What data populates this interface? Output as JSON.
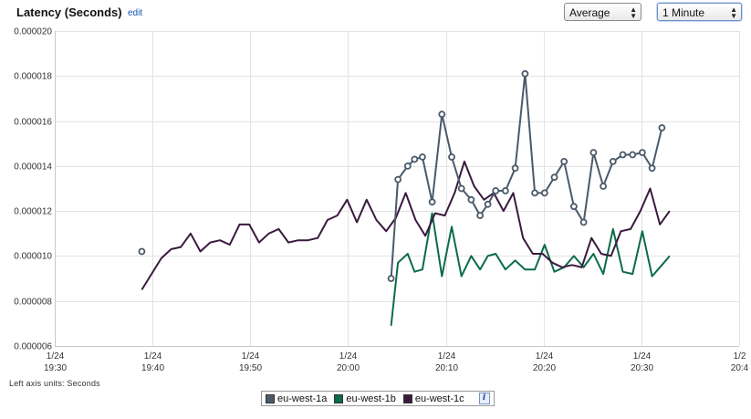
{
  "header": {
    "title": "Latency (Seconds)",
    "edit_label": "edit",
    "statistic": "Average",
    "period": "1 Minute"
  },
  "footnote": "Left axis units: Seconds",
  "legend": {
    "items": [
      {
        "label": "eu-west-1a",
        "color": "#4a5a6a"
      },
      {
        "label": "eu-west-1b",
        "color": "#0b6b4a"
      },
      {
        "label": "eu-west-1c",
        "color": "#3a1a3e"
      }
    ],
    "info_icon": "info-icon",
    "info_label": "i"
  },
  "chart_data": {
    "type": "line",
    "title": "Latency (Seconds)",
    "ylabel": "Seconds",
    "ylim": [
      6e-06,
      2e-05
    ],
    "xlim_minutes": [
      0,
      70
    ],
    "y_ticks": [
      "0.000006",
      "0.000008",
      "0.000010",
      "0.000012",
      "0.000014",
      "0.000016",
      "0.000018",
      "0.000020"
    ],
    "y_tick_values": [
      6e-06,
      8e-06,
      1e-05,
      1.2e-05,
      1.4e-05,
      1.6e-05,
      1.8e-05,
      2e-05
    ],
    "x_ticks": [
      {
        "minute": 0,
        "date": "1/24",
        "time": "19:30"
      },
      {
        "minute": 10,
        "date": "1/24",
        "time": "19:40"
      },
      {
        "minute": 20,
        "date": "1/24",
        "time": "19:50"
      },
      {
        "minute": 30,
        "date": "1/24",
        "time": "20:00"
      },
      {
        "minute": 40,
        "date": "1/24",
        "time": "20:10"
      },
      {
        "minute": 50,
        "date": "1/24",
        "time": "20:20"
      },
      {
        "minute": 60,
        "date": "1/24",
        "time": "20:30"
      },
      {
        "minute": 70,
        "date": "1/2",
        "time": "20:4"
      }
    ],
    "grid": true,
    "legend_position": "bottom",
    "series": [
      {
        "name": "eu-west-1a",
        "color": "#4a5a6a",
        "markers": true,
        "points": [
          [
            8.9,
            1.02e-05
          ],
          [
            34.4,
            9e-06
          ],
          [
            35.1,
            1.34e-05
          ],
          [
            36.1,
            1.4e-05
          ],
          [
            36.8,
            1.43e-05
          ],
          [
            37.6,
            1.44e-05
          ],
          [
            38.6,
            1.24e-05
          ],
          [
            39.6,
            1.63e-05
          ],
          [
            40.6,
            1.44e-05
          ],
          [
            41.6,
            1.3e-05
          ],
          [
            42.6,
            1.25e-05
          ],
          [
            43.5,
            1.18e-05
          ],
          [
            44.3,
            1.23e-05
          ],
          [
            45.1,
            1.29e-05
          ],
          [
            46.1,
            1.29e-05
          ],
          [
            47.1,
            1.39e-05
          ],
          [
            48.1,
            1.81e-05
          ],
          [
            49.1,
            1.28e-05
          ],
          [
            50.1,
            1.28e-05
          ],
          [
            51.1,
            1.35e-05
          ],
          [
            52.1,
            1.42e-05
          ],
          [
            53.1,
            1.22e-05
          ],
          [
            54.1,
            1.15e-05
          ],
          [
            55.1,
            1.46e-05
          ],
          [
            56.1,
            1.31e-05
          ],
          [
            57.1,
            1.42e-05
          ],
          [
            58.1,
            1.45e-05
          ],
          [
            59.1,
            1.45e-05
          ],
          [
            60.1,
            1.46e-05
          ],
          [
            61.1,
            1.39e-05
          ],
          [
            62.1,
            1.57e-05
          ]
        ]
      },
      {
        "name": "eu-west-1b",
        "color": "#0b6b4a",
        "markers": false,
        "points": [
          [
            34.4,
            6.9e-06
          ],
          [
            35.1,
            9.7e-06
          ],
          [
            36.1,
            1.01e-05
          ],
          [
            36.8,
            9.3e-06
          ],
          [
            37.6,
            9.4e-06
          ],
          [
            38.6,
            1.19e-05
          ],
          [
            39.6,
            9.1e-06
          ],
          [
            40.6,
            1.13e-05
          ],
          [
            41.6,
            9.1e-06
          ],
          [
            42.6,
            1e-05
          ],
          [
            43.5,
            9.4e-06
          ],
          [
            44.3,
            1e-05
          ],
          [
            45.1,
            1.01e-05
          ],
          [
            46.1,
            9.4e-06
          ],
          [
            47.1,
            9.8e-06
          ],
          [
            48.1,
            9.4e-06
          ],
          [
            49.1,
            9.4e-06
          ],
          [
            50.1,
            1.05e-05
          ],
          [
            51.1,
            9.3e-06
          ],
          [
            52.1,
            9.5e-06
          ],
          [
            53.1,
            1e-05
          ],
          [
            54.1,
            9.5e-06
          ],
          [
            55.1,
            1.01e-05
          ],
          [
            56.1,
            9.2e-06
          ],
          [
            57.1,
            1.12e-05
          ],
          [
            58.1,
            9.3e-06
          ],
          [
            59.1,
            9.2e-06
          ],
          [
            60.1,
            1.11e-05
          ],
          [
            61.1,
            9.1e-06
          ],
          [
            62.1,
            9.6e-06
          ],
          [
            62.9,
            1e-05
          ]
        ]
      },
      {
        "name": "eu-west-1c",
        "color": "#3a1a3e",
        "markers": false,
        "points": [
          [
            8.9,
            8.5e-06
          ],
          [
            9.9,
            9.2e-06
          ],
          [
            10.9,
            9.9e-06
          ],
          [
            11.9,
            1.03e-05
          ],
          [
            12.9,
            1.04e-05
          ],
          [
            13.9,
            1.1e-05
          ],
          [
            14.9,
            1.02e-05
          ],
          [
            15.9,
            1.06e-05
          ],
          [
            16.9,
            1.07e-05
          ],
          [
            17.9,
            1.05e-05
          ],
          [
            18.9,
            1.14e-05
          ],
          [
            19.9,
            1.14e-05
          ],
          [
            20.9,
            1.06e-05
          ],
          [
            21.9,
            1.1e-05
          ],
          [
            22.9,
            1.12e-05
          ],
          [
            23.9,
            1.06e-05
          ],
          [
            24.9,
            1.07e-05
          ],
          [
            25.9,
            1.07e-05
          ],
          [
            26.9,
            1.08e-05
          ],
          [
            27.9,
            1.16e-05
          ],
          [
            28.9,
            1.18e-05
          ],
          [
            29.9,
            1.25e-05
          ],
          [
            30.9,
            1.15e-05
          ],
          [
            31.9,
            1.25e-05
          ],
          [
            32.9,
            1.16e-05
          ],
          [
            33.9,
            1.11e-05
          ],
          [
            34.9,
            1.17e-05
          ],
          [
            35.9,
            1.28e-05
          ],
          [
            36.9,
            1.16e-05
          ],
          [
            37.9,
            1.09e-05
          ],
          [
            38.9,
            1.19e-05
          ],
          [
            39.9,
            1.18e-05
          ],
          [
            40.9,
            1.28e-05
          ],
          [
            41.9,
            1.42e-05
          ],
          [
            42.9,
            1.31e-05
          ],
          [
            43.9,
            1.25e-05
          ],
          [
            44.9,
            1.28e-05
          ],
          [
            45.9,
            1.2e-05
          ],
          [
            46.9,
            1.28e-05
          ],
          [
            47.9,
            1.08e-05
          ],
          [
            48.9,
            1.01e-05
          ],
          [
            49.9,
            1.01e-05
          ],
          [
            50.9,
            9.7e-06
          ],
          [
            51.9,
            9.5e-06
          ],
          [
            52.9,
            9.6e-06
          ],
          [
            53.9,
            9.5e-06
          ],
          [
            54.9,
            1.08e-05
          ],
          [
            55.9,
            1.01e-05
          ],
          [
            56.9,
            1e-05
          ],
          [
            57.9,
            1.11e-05
          ],
          [
            58.9,
            1.12e-05
          ],
          [
            59.9,
            1.2e-05
          ],
          [
            60.9,
            1.3e-05
          ],
          [
            61.9,
            1.14e-05
          ],
          [
            62.9,
            1.2e-05
          ]
        ]
      }
    ]
  }
}
